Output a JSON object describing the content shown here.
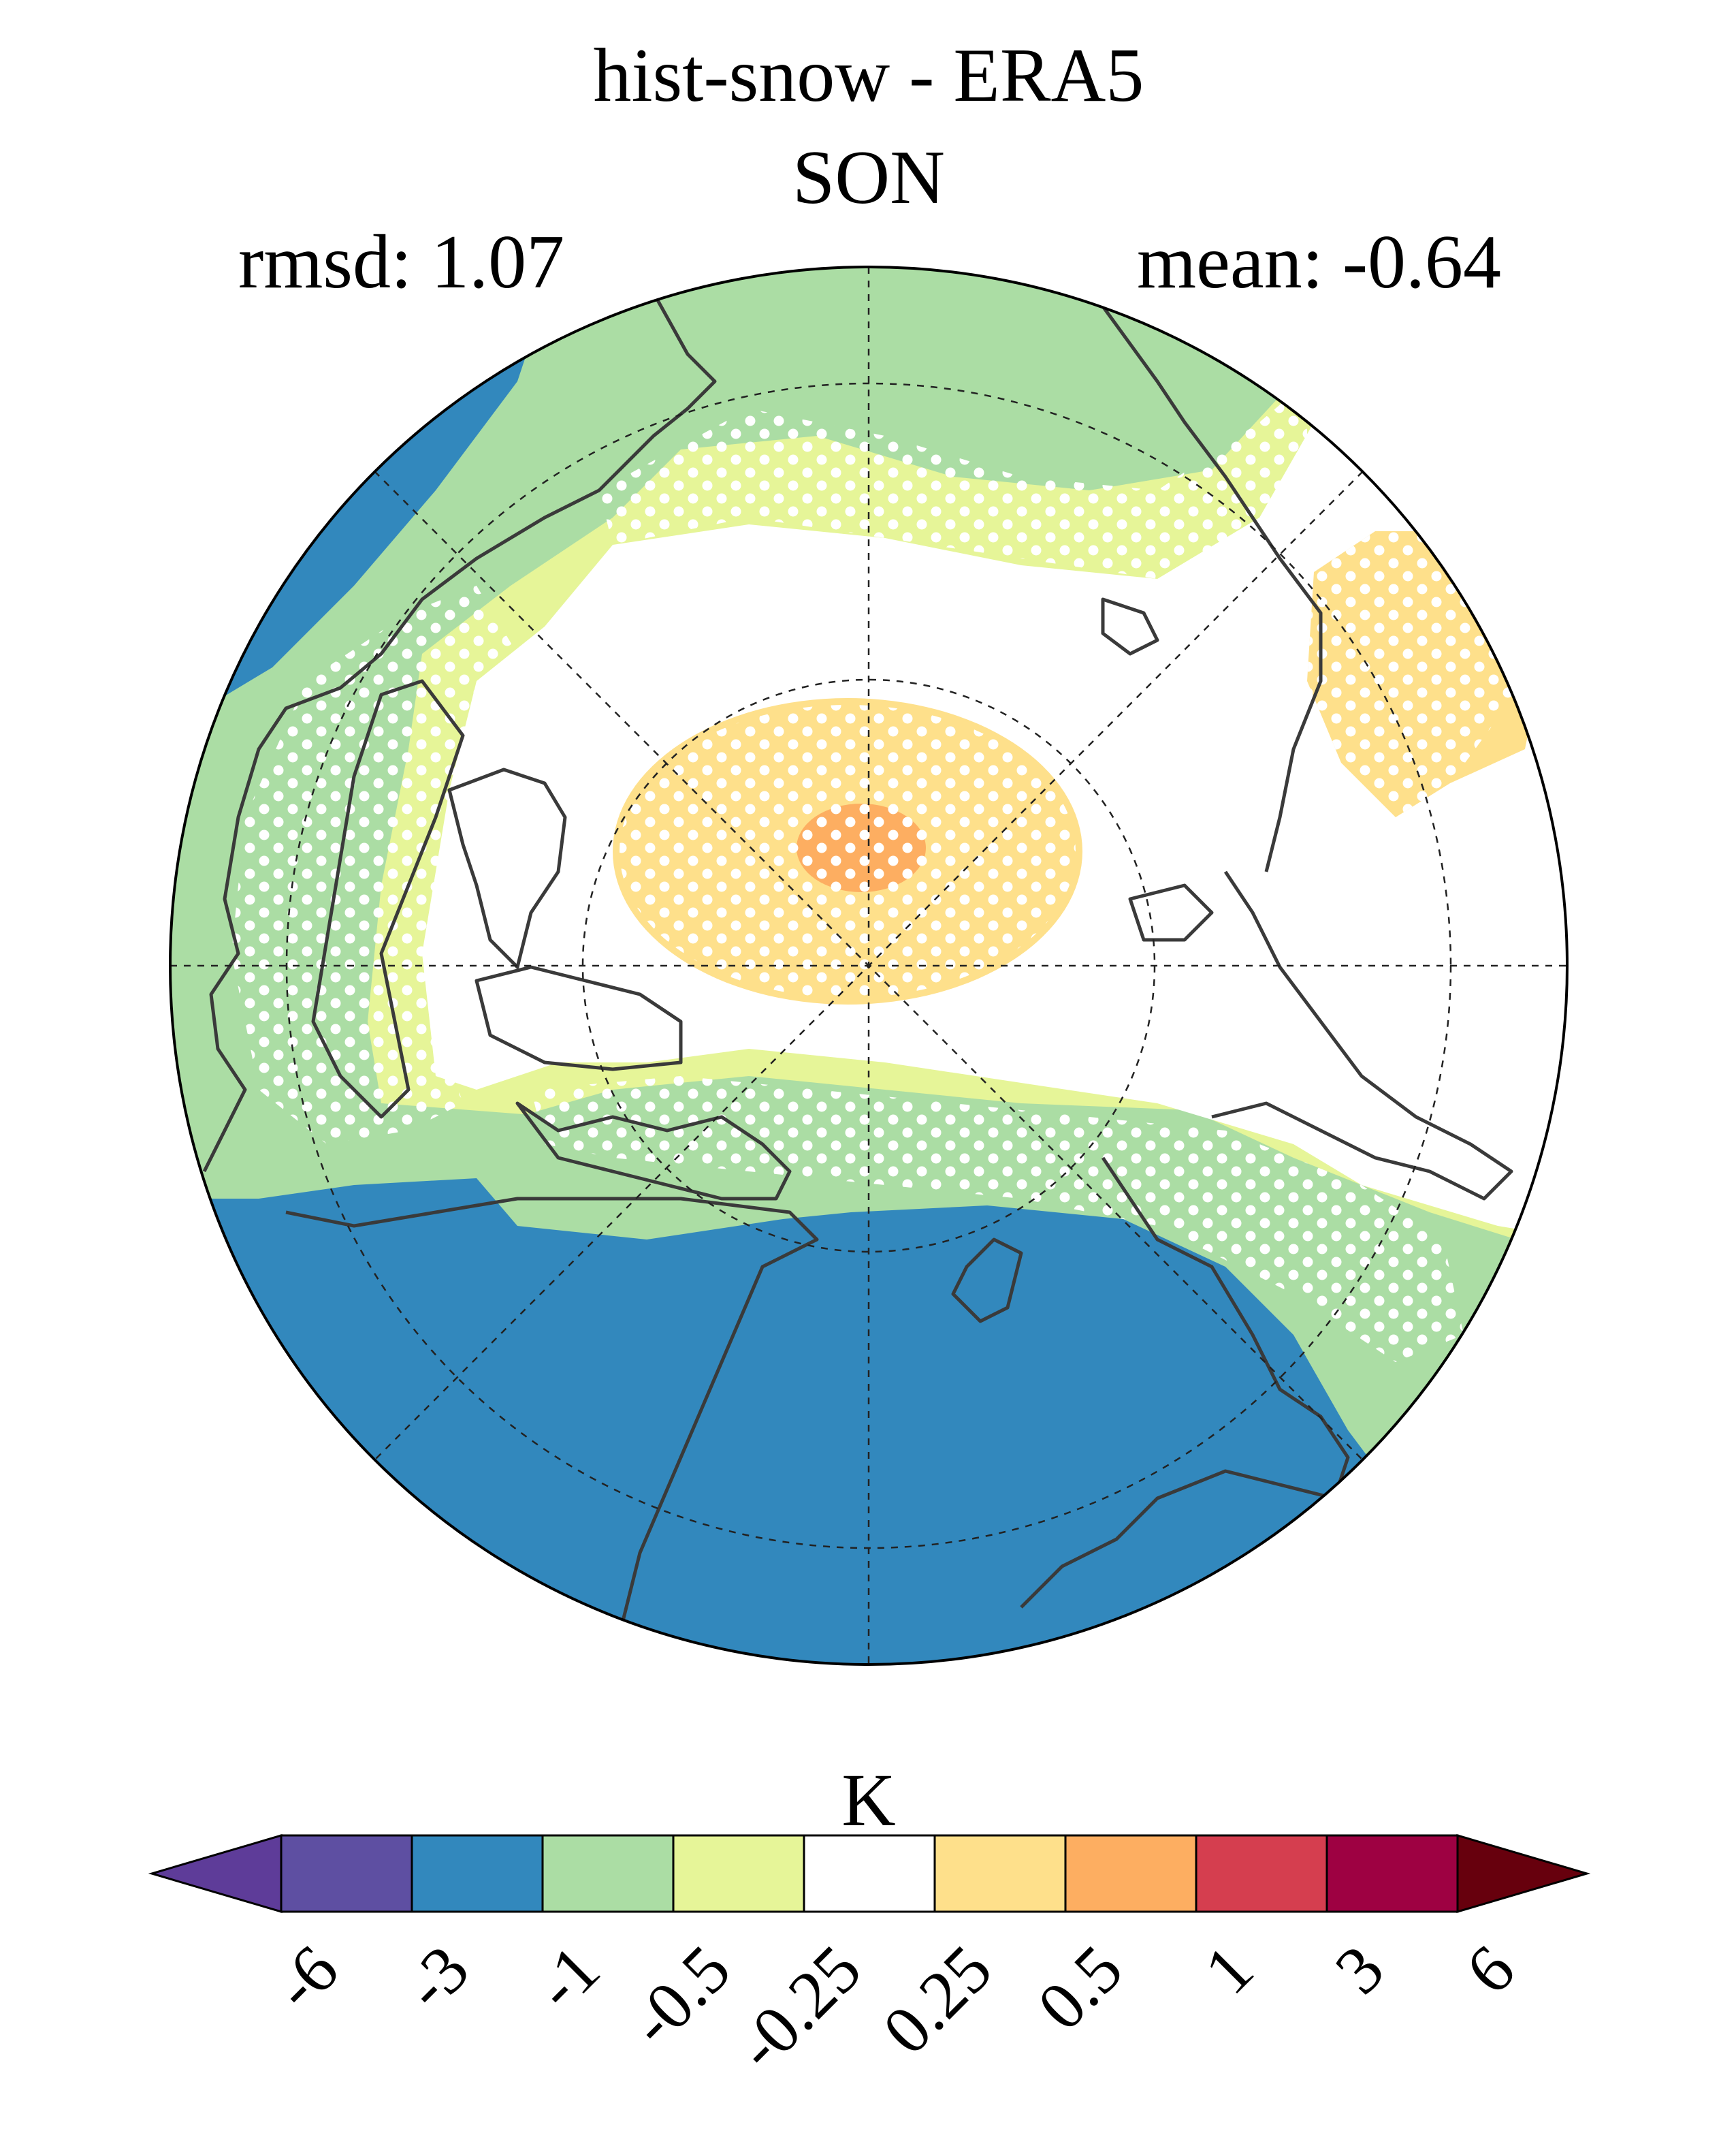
{
  "title": "hist-snow - ERA5",
  "season": "SON",
  "stats": {
    "rmsd": "rmsd: 1.07",
    "mean": "mean: -0.64"
  },
  "colorbar": {
    "unit": "K",
    "ticks": [
      "-6",
      "-3",
      "-1",
      "-0.5",
      "-0.25",
      "0.25",
      "0.5",
      "1",
      "3",
      "6"
    ],
    "colors": [
      "#5e4fa2",
      "#3288bd",
      "#abdda4",
      "#e6f598",
      "#ffffff",
      "#fee08b",
      "#fdae61",
      "#d53e4f",
      "#9e0142"
    ],
    "under_color": "#5e3c99",
    "over_color": "#67000d"
  },
  "map": {
    "projection": "north-polar-stereographic",
    "colors": {
      "deep_negative": "#3288bd",
      "negative": "#abdda4",
      "slight_negative": "#e6f598",
      "neutral": "#ffffff",
      "slight_positive": "#fee08b",
      "positive": "#fdae61",
      "coast": "#3a3a3a",
      "stipple": "#ffffff"
    }
  }
}
